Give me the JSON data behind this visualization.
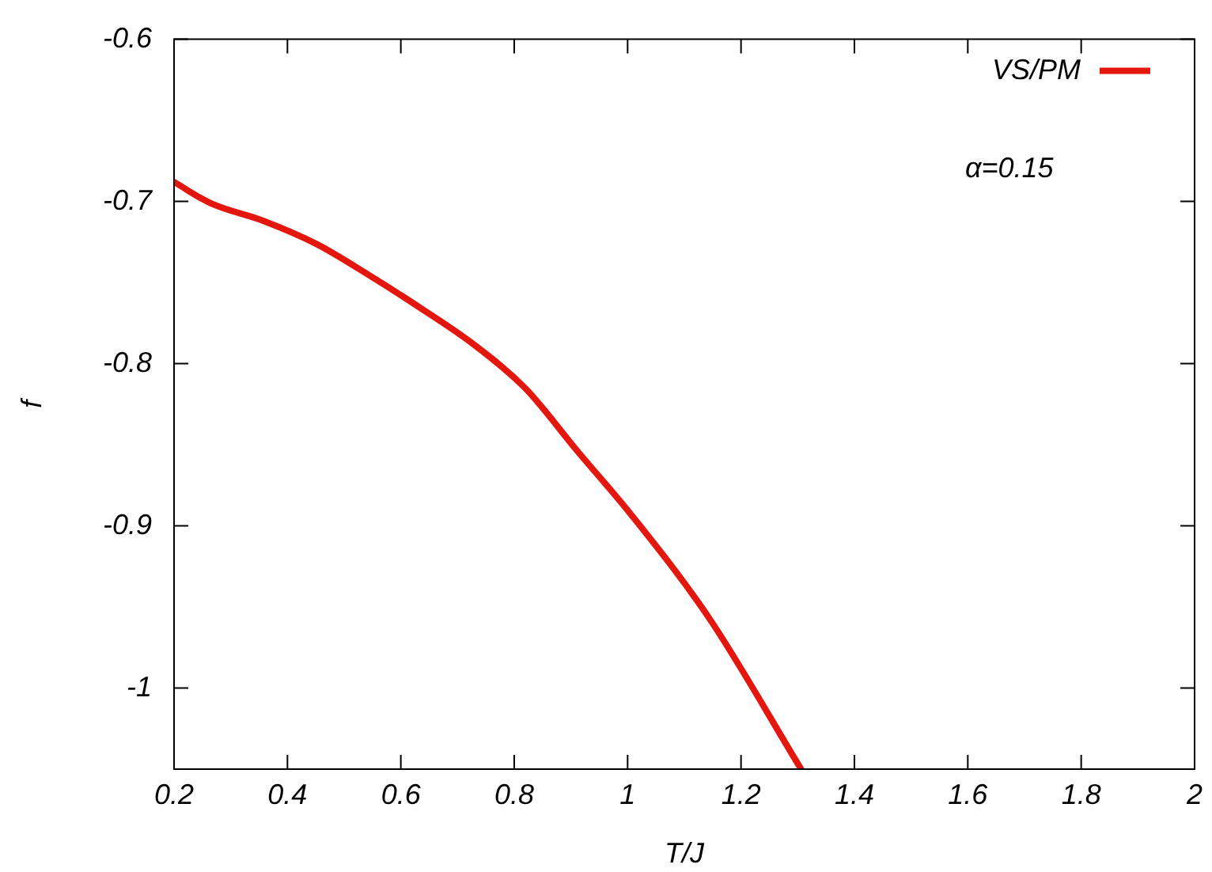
{
  "chart_data": {
    "type": "line",
    "xlabel": "T/J",
    "ylabel": "f",
    "xlim": [
      0.2,
      2
    ],
    "xticks": [
      0.2,
      0.4,
      0.6,
      0.8,
      1,
      1.2,
      1.4,
      1.6,
      1.8,
      2
    ],
    "ylim": [
      -1.05,
      -0.6
    ],
    "yticks": [
      -0.6,
      -0.7,
      -0.8,
      -0.9,
      -1
    ],
    "grid": false,
    "legend": "top right",
    "marker": "none",
    "line_style": "solid",
    "annotations": [
      "α=0.15"
    ],
    "series": [
      {
        "name": "VS/PM",
        "color": "#e3170d",
        "x": [
          0.2,
          0.264,
          0.358,
          0.45,
          0.542,
          0.636,
          0.728,
          0.819,
          0.914,
          1.006,
          1.144,
          1.306
        ],
        "values": [
          -0.688,
          -0.701,
          -0.712,
          -0.726,
          -0.745,
          -0.766,
          -0.788,
          -0.815,
          -0.855,
          -0.893,
          -0.957,
          -1.05
        ]
      }
    ]
  }
}
